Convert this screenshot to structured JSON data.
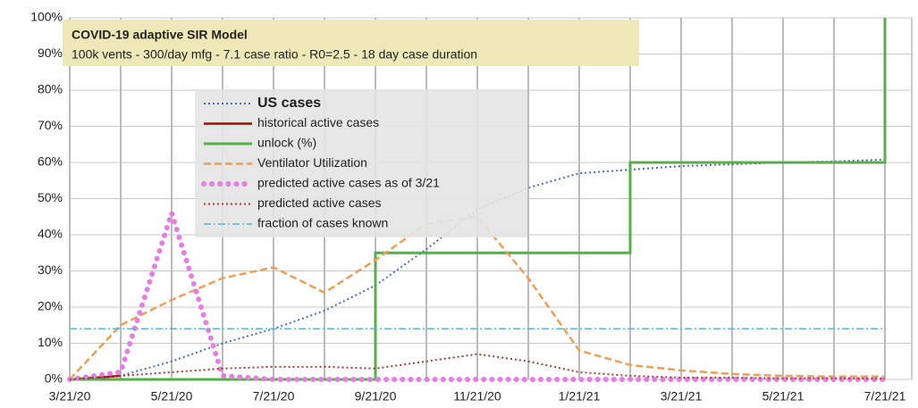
{
  "chart_data": {
    "type": "line",
    "title": "COVID-19 adaptive SIR Model",
    "subtitle": "100k vents - 300/day mfg - 7.1 case ratio - R0=2.5 - 18 day case duration",
    "categories": [
      "3/21/20",
      null,
      "5/21/20",
      null,
      "7/21/20",
      null,
      "9/21/20",
      null,
      "11/21/20",
      null,
      "1/21/21",
      null,
      "3/21/21",
      null,
      "5/21/21",
      null,
      "7/21/21"
    ],
    "ylim": [
      0,
      100
    ],
    "yticks": [
      {
        "value": 0,
        "label": "0%"
      },
      {
        "value": 10,
        "label": "10%"
      },
      {
        "value": 20,
        "label": "20%"
      },
      {
        "value": 30,
        "label": "30%"
      },
      {
        "value": 40,
        "label": "40%"
      },
      {
        "value": 50,
        "label": "50%"
      },
      {
        "value": 60,
        "label": "60%"
      },
      {
        "value": 70,
        "label": "70%"
      },
      {
        "value": 80,
        "label": "80%"
      },
      {
        "value": 90,
        "label": "90%"
      },
      {
        "value": 100,
        "label": "100%"
      }
    ],
    "grid": true,
    "series": [
      {
        "name": "US cases",
        "color": "#4a6fb0",
        "style": "dotted",
        "values": [
          0,
          1,
          5,
          10,
          14,
          19,
          26,
          36,
          47,
          53,
          57,
          58,
          59,
          59.5,
          60,
          60.3,
          60.8
        ]
      },
      {
        "name": "historical active cases",
        "color": "#b00000",
        "style": "solid",
        "values": [
          0,
          1,
          null,
          null,
          null,
          null,
          null,
          null,
          null,
          null,
          null,
          null,
          null,
          null,
          null,
          null,
          null
        ]
      },
      {
        "name": "unlock (%)",
        "color": "#5aac4e",
        "style": "step",
        "values": [
          0,
          0,
          0,
          0,
          0,
          0,
          35,
          35,
          35,
          35,
          35,
          60,
          60,
          60,
          60,
          60,
          100
        ]
      },
      {
        "name": "Ventilator Utilization",
        "color": "#e8a05a",
        "style": "dashed",
        "values": [
          0,
          15,
          22,
          28,
          31,
          24,
          33,
          43,
          45,
          28,
          8,
          4,
          2.5,
          1.5,
          1,
          0.8,
          0.8
        ]
      },
      {
        "name": "predicted active cases as of 3/21",
        "color": "#e27fe0",
        "style": "bigdots",
        "values": [
          0,
          2,
          46,
          1,
          0,
          0,
          0,
          0,
          0,
          0,
          0,
          0,
          0,
          0,
          0,
          0,
          0
        ]
      },
      {
        "name": "predicted active cases",
        "color": "#a0403a",
        "style": "dotted",
        "values": [
          0,
          1,
          2,
          3,
          3.5,
          3.5,
          3,
          5,
          7,
          5,
          2,
          1,
          0.5,
          0.5,
          0.3,
          0.3,
          0.2
        ]
      },
      {
        "name": "fraction of cases known",
        "color": "#5ab4d8",
        "style": "dashdot",
        "values": [
          14,
          14,
          14,
          14,
          14,
          14,
          14,
          14,
          14,
          14,
          14,
          14,
          14,
          14,
          14,
          14,
          14
        ]
      }
    ]
  }
}
